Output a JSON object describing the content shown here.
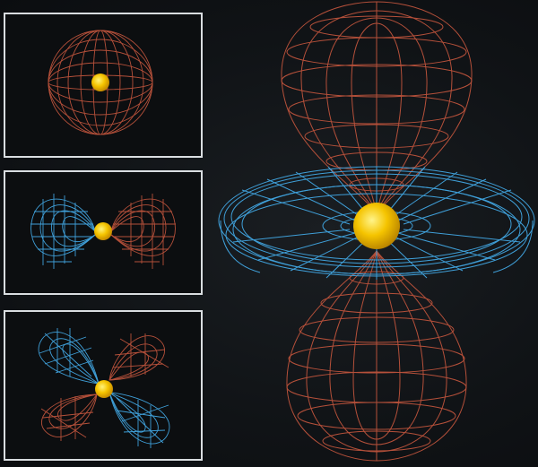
{
  "colors": {
    "background": "#101316",
    "panel_border": "#d9dde0",
    "lobe_red": "#b5503a",
    "lobe_blue": "#3f9fd8",
    "nucleus_yellow": "#f5c400"
  },
  "panels": [
    {
      "shape": "s-orbital",
      "lobes": [
        "red-sphere"
      ]
    },
    {
      "shape": "p-orbital",
      "lobes": [
        "blue-lobe-left",
        "red-lobe-right"
      ]
    },
    {
      "shape": "d-orbital",
      "lobes": [
        "blue-lobe-top-left",
        "red-lobe-top-right",
        "red-lobe-bottom-left",
        "blue-lobe-bottom-right"
      ]
    }
  ],
  "main_figure": {
    "shape": "dz2-orbital",
    "lobes": [
      "red-lobe-top",
      "blue-torus-ring",
      "red-lobe-bottom"
    ]
  }
}
